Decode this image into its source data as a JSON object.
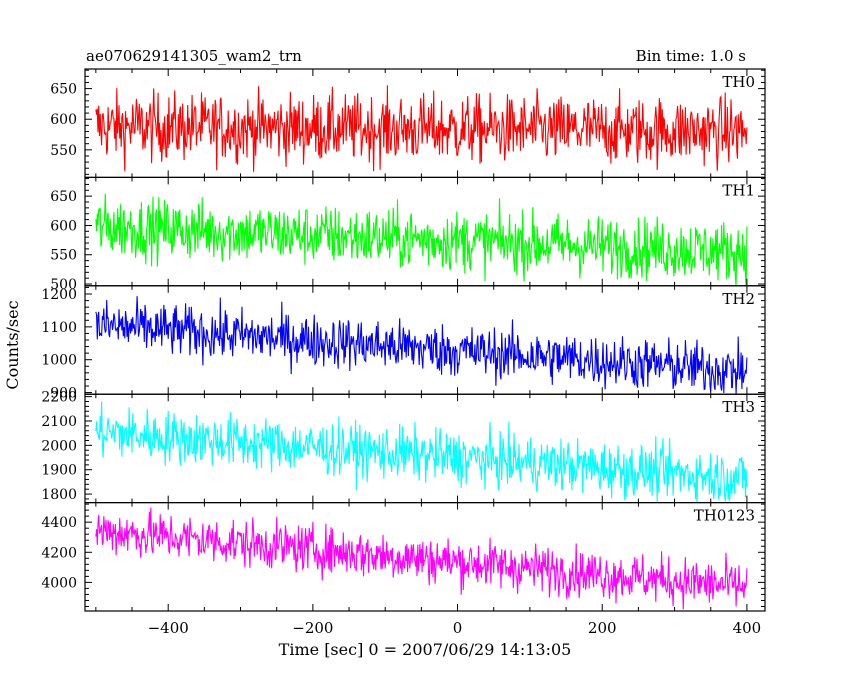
{
  "chart_data": {
    "type": "line",
    "title_left": "ae070629141305_wam2_trn",
    "title_right": "Bin time: 1.0 s",
    "xlabel": "Time [sec] 0 = 2007/06/29 14:13:05",
    "ylabel": "Counts/sec",
    "xlim": [
      -515,
      425
    ],
    "x_ticks": [
      -400,
      -200,
      0,
      200,
      400
    ],
    "x_tick_labels": [
      "−400",
      "−200",
      "0",
      "200",
      "400"
    ],
    "x_range": [
      -500,
      400
    ],
    "panels": [
      {
        "name": "TH0",
        "color": "#ff0000",
        "ylim": [
          505,
          682
        ],
        "y_ticks": [
          550,
          600,
          650
        ],
        "y_tick_labels": [
          "550",
          "600",
          "650"
        ],
        "trend": [
          588,
          580
        ],
        "noise": 28
      },
      {
        "name": "TH1",
        "color": "#00ff00",
        "ylim": [
          497,
          682
        ],
        "y_ticks": [
          500,
          550,
          600,
          650
        ],
        "y_tick_labels": [
          "500",
          "550",
          "600",
          "650"
        ],
        "trend": [
          598,
          555
        ],
        "noise": 26
      },
      {
        "name": "TH2",
        "color": "#0000ff",
        "ylim": [
          895,
          1225
        ],
        "y_ticks": [
          900,
          1000,
          1100,
          1200
        ],
        "y_tick_labels": [
          "900",
          "1000",
          "1100",
          "1200"
        ],
        "trend": [
          1105,
          965
        ],
        "noise": 40
      },
      {
        "name": "TH3",
        "color": "#00ffff",
        "ylim": [
          1765,
          2210
        ],
        "y_ticks": [
          1800,
          1900,
          2000,
          2100,
          2200
        ],
        "y_tick_labels": [
          "1800",
          "1900",
          "2000",
          "2100",
          "2200"
        ],
        "trend": [
          2055,
          1865
        ],
        "noise": 55
      },
      {
        "name": "TH0123",
        "color": "#ff00ff",
        "ylim": [
          3810,
          4530
        ],
        "y_ticks": [
          4000,
          4200,
          4400
        ],
        "y_tick_labels": [
          "4000",
          "4200",
          "4400"
        ],
        "trend": [
          4345,
          3970
        ],
        "noise": 80
      }
    ]
  }
}
